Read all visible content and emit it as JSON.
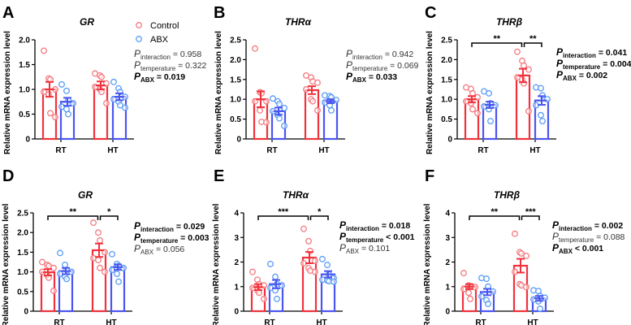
{
  "legend": {
    "control": "Control",
    "abx": "ABX"
  },
  "colors": {
    "control_bar": "#f0323c",
    "abx_bar": "#4b55f0",
    "control_point": "#f47a80",
    "abx_point": "#5a9cf5"
  },
  "chart_data": [
    {
      "type": "bar",
      "panel": "A",
      "title": "GR",
      "ylabel": "Relative mRNA expression level",
      "categories": [
        "RT",
        "HT"
      ],
      "ylim": [
        0,
        2.0
      ],
      "yticks": [
        "0",
        "0.5",
        "1.0",
        "1.5",
        "2.0"
      ],
      "ytick_values": [
        0,
        0.5,
        1.0,
        1.5,
        2.0
      ],
      "series": [
        {
          "name": "Control",
          "means": [
            1.0,
            1.08
          ],
          "sem": [
            0.15,
            0.08
          ],
          "points": [
            [
              1.78,
              1.22,
              1.2,
              1.0,
              0.95,
              0.9,
              0.52,
              0.44
            ],
            [
              1.32,
              1.28,
              1.25,
              1.12,
              1.05,
              1.0,
              0.95,
              0.72
            ]
          ]
        },
        {
          "name": "ABX",
          "means": [
            0.75,
            0.85
          ],
          "sem": [
            0.08,
            0.07
          ],
          "points": [
            [
              1.1,
              0.97,
              0.78,
              0.72,
              0.65,
              0.6,
              0.5
            ],
            [
              1.15,
              1.02,
              0.95,
              0.85,
              0.8,
              0.75,
              0.68,
              0.63
            ]
          ]
        }
      ],
      "pvalues": [
        {
          "label": "P",
          "sub": "interaction",
          "value": "= 0.958",
          "bold": false
        },
        {
          "label": "P",
          "sub": "temperature",
          "value": "= 0.322",
          "bold": false
        },
        {
          "label": "P",
          "sub": "ABX",
          "value": "= 0.019",
          "bold": true
        }
      ],
      "brackets": []
    },
    {
      "type": "bar",
      "panel": "B",
      "title": "THRα",
      "ylabel": "Relative mRNA expression level",
      "categories": [
        "RT",
        "HT"
      ],
      "ylim": [
        0,
        2.5
      ],
      "yticks": [
        "0",
        "0.5",
        "1.0",
        "1.5",
        "2.0",
        "2.5"
      ],
      "ytick_values": [
        0,
        0.5,
        1.0,
        1.5,
        2.0,
        2.5
      ],
      "series": [
        {
          "name": "Control",
          "means": [
            1.0,
            1.23
          ],
          "sem": [
            0.2,
            0.1
          ],
          "points": [
            [
              2.28,
              1.18,
              1.15,
              0.95,
              0.95,
              0.72,
              0.43,
              0.42
            ],
            [
              1.6,
              1.55,
              1.45,
              1.42,
              1.25,
              1.0,
              0.95,
              0.72
            ]
          ]
        },
        {
          "name": "ABX",
          "means": [
            0.7,
            0.95
          ],
          "sem": [
            0.09,
            0.05
          ],
          "points": [
            [
              1.02,
              0.95,
              0.88,
              0.78,
              0.7,
              0.6,
              0.52,
              0.33
            ],
            [
              1.1,
              1.08,
              1.05,
              0.98,
              0.92,
              0.85,
              0.72
            ]
          ]
        }
      ],
      "pvalues": [
        {
          "label": "P",
          "sub": "interaction",
          "value": "= 0.942",
          "bold": false
        },
        {
          "label": "P",
          "sub": "temperature",
          "value": "= 0.069",
          "bold": false
        },
        {
          "label": "P",
          "sub": "ABX",
          "value": "= 0.033",
          "bold": true
        }
      ],
      "brackets": []
    },
    {
      "type": "bar",
      "panel": "C",
      "title": "THRβ",
      "ylabel": "Relative mRNA expression level",
      "categories": [
        "RT",
        "HT"
      ],
      "ylim": [
        0,
        2.5
      ],
      "yticks": [
        "0",
        "0.5",
        "1.0",
        "1.5",
        "2.0",
        "2.5"
      ],
      "ytick_values": [
        0,
        0.5,
        1.0,
        1.5,
        2.0,
        2.5
      ],
      "series": [
        {
          "name": "Control",
          "means": [
            1.0,
            1.6
          ],
          "sem": [
            0.08,
            0.17
          ],
          "points": [
            [
              1.3,
              1.26,
              1.15,
              1.05,
              0.95,
              0.9,
              0.75,
              0.65
            ],
            [
              2.2,
              1.97,
              1.85,
              1.75,
              1.55,
              1.5,
              1.4,
              0.7
            ]
          ]
        },
        {
          "name": "ABX",
          "means": [
            0.86,
            0.97
          ],
          "sem": [
            0.08,
            0.11
          ],
          "points": [
            [
              1.2,
              1.15,
              0.9,
              0.85,
              0.82,
              0.75,
              0.45
            ],
            [
              1.3,
              1.28,
              1.1,
              1.0,
              0.85,
              0.6,
              0.45
            ]
          ]
        }
      ],
      "pvalues": [
        {
          "label": "P",
          "sub": "interaction",
          "value": "= 0.041",
          "bold": true
        },
        {
          "label": "P",
          "sub": "temperature",
          "value": "= 0.004",
          "bold": true
        },
        {
          "label": "P",
          "sub": "ABX",
          "value": "= 0.002",
          "bold": true
        }
      ],
      "brackets": [
        {
          "from": "RT-Control",
          "to": "HT-Control",
          "label": "**"
        },
        {
          "from": "HT-Control",
          "to": "HT-ABX",
          "label": "**"
        }
      ]
    },
    {
      "type": "bar",
      "panel": "D",
      "title": "GR",
      "ylabel": "Relative mRNA expression level",
      "categories": [
        "RT",
        "HT"
      ],
      "ylim": [
        0,
        2.5
      ],
      "yticks": [
        "0",
        "0.5",
        "1.0",
        "1.5",
        "2.0",
        "2.5"
      ],
      "ytick_values": [
        0,
        0.5,
        1.0,
        1.5,
        2.0,
        2.5
      ],
      "series": [
        {
          "name": "Control",
          "means": [
            0.99,
            1.55
          ],
          "sem": [
            0.08,
            0.17
          ],
          "points": [
            [
              1.25,
              1.18,
              1.15,
              1.1,
              1.0,
              0.92,
              0.85,
              0.52
            ],
            [
              2.25,
              2.0,
              1.8,
              1.5,
              1.35,
              1.3,
              1.1,
              1.0
            ]
          ]
        },
        {
          "name": "ABX",
          "means": [
            1.02,
            1.12
          ],
          "sem": [
            0.08,
            0.07
          ],
          "points": [
            [
              1.48,
              1.18,
              1.05,
              1.0,
              0.95,
              0.88,
              0.82
            ],
            [
              1.45,
              1.2,
              1.15,
              1.1,
              1.05,
              0.95,
              0.75
            ]
          ]
        }
      ],
      "pvalues": [
        {
          "label": "P",
          "sub": "interaction",
          "value": "= 0.029",
          "bold": true
        },
        {
          "label": "P",
          "sub": "temperature",
          "value": "= 0.003",
          "bold": true
        },
        {
          "label": "P",
          "sub": "ABX",
          "value": "= 0.056",
          "bold": false
        }
      ],
      "brackets": [
        {
          "from": "RT-Control",
          "to": "HT-Control",
          "label": "**"
        },
        {
          "from": "HT-Control",
          "to": "HT-ABX",
          "label": "*"
        }
      ]
    },
    {
      "type": "bar",
      "panel": "E",
      "title": "THRα",
      "ylabel": "Relative mRNA expression level",
      "categories": [
        "RT",
        "HT"
      ],
      "ylim": [
        0,
        4
      ],
      "yticks": [
        "0",
        "1",
        "2",
        "3",
        "4"
      ],
      "ytick_values": [
        0,
        1,
        2,
        3,
        4
      ],
      "series": [
        {
          "name": "Control",
          "means": [
            0.98,
            2.18
          ],
          "sem": [
            0.12,
            0.23
          ],
          "points": [
            [
              1.6,
              1.28,
              1.1,
              1.05,
              0.95,
              0.85,
              0.75,
              0.5
            ],
            [
              3.35,
              2.85,
              2.45,
              2.05,
              1.95,
              1.75,
              1.65,
              1.6
            ]
          ]
        },
        {
          "name": "ABX",
          "means": [
            1.1,
            1.5
          ],
          "sem": [
            0.17,
            0.13
          ],
          "points": [
            [
              1.92,
              1.4,
              1.1,
              1.05,
              0.95,
              0.85,
              0.5
            ],
            [
              2.12,
              1.88,
              1.5,
              1.35,
              1.28,
              1.25,
              1.22,
              1.2
            ]
          ]
        }
      ],
      "pvalues": [
        {
          "label": "P",
          "sub": "interaction",
          "value": "= 0.018",
          "bold": true
        },
        {
          "label": "P",
          "sub": "temperature",
          "value": "< 0.001",
          "bold": true
        },
        {
          "label": "P",
          "sub": "ABX",
          "value": "= 0.101",
          "bold": false
        }
      ],
      "brackets": [
        {
          "from": "RT-Control",
          "to": "HT-Control",
          "label": "***"
        },
        {
          "from": "HT-Control",
          "to": "HT-ABX",
          "label": "*"
        }
      ]
    },
    {
      "type": "bar",
      "panel": "F",
      "title": "THRβ",
      "ylabel": "Relative mRNA expression level",
      "categories": [
        "RT",
        "HT"
      ],
      "ylim": [
        0,
        4
      ],
      "yticks": [
        "0",
        "1",
        "2",
        "3",
        "4"
      ],
      "ytick_values": [
        0,
        1,
        2,
        3,
        4
      ],
      "series": [
        {
          "name": "Control",
          "means": [
            1.0,
            1.85
          ],
          "sem": [
            0.1,
            0.28
          ],
          "points": [
            [
              1.55,
              1.05,
              1.02,
              0.98,
              0.9,
              0.75,
              0.5
            ],
            [
              3.15,
              2.4,
              2.35,
              2.25,
              1.6,
              1.1,
              1.05,
              0.98
            ]
          ]
        },
        {
          "name": "ABX",
          "means": [
            0.78,
            0.52
          ],
          "sem": [
            0.13,
            0.1
          ],
          "points": [
            [
              1.35,
              1.32,
              1.0,
              0.8,
              0.6,
              0.45,
              0.3
            ],
            [
              0.85,
              0.82,
              0.62,
              0.55,
              0.48,
              0.4,
              0.1
            ]
          ]
        }
      ],
      "pvalues": [
        {
          "label": "P",
          "sub": "interaction",
          "value": "= 0.002",
          "bold": true
        },
        {
          "label": "P",
          "sub": "temperature",
          "value": "= 0.088",
          "bold": false
        },
        {
          "label": "P",
          "sub": "ABX",
          "value": "< 0.001",
          "bold": true
        }
      ],
      "brackets": [
        {
          "from": "RT-Control",
          "to": "HT-Control",
          "label": "**"
        },
        {
          "from": "HT-Control",
          "to": "HT-ABX",
          "label": "***"
        }
      ]
    }
  ]
}
